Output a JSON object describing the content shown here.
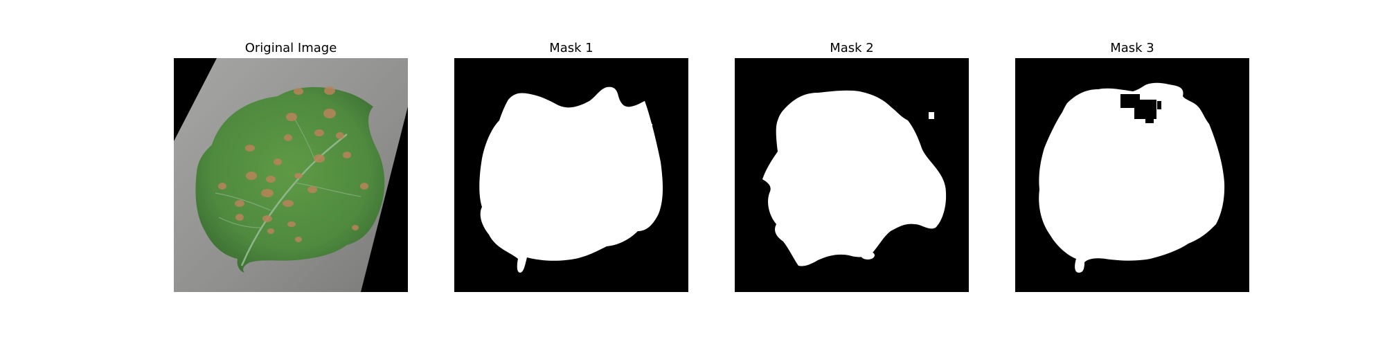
{
  "panels": [
    {
      "title": "Original Image",
      "content": "leaf-photo"
    },
    {
      "title": "Mask 1",
      "content": "binary-mask"
    },
    {
      "title": "Mask 2",
      "content": "binary-mask"
    },
    {
      "title": "Mask 3",
      "content": "binary-mask"
    }
  ],
  "colors": {
    "background": "#ffffff",
    "mask_foreground": "#ffffff",
    "mask_background": "#000000",
    "leaf_green": "#4f8a3f",
    "lesion": "#b9835a",
    "surface_gray": "#8f8f8d"
  }
}
